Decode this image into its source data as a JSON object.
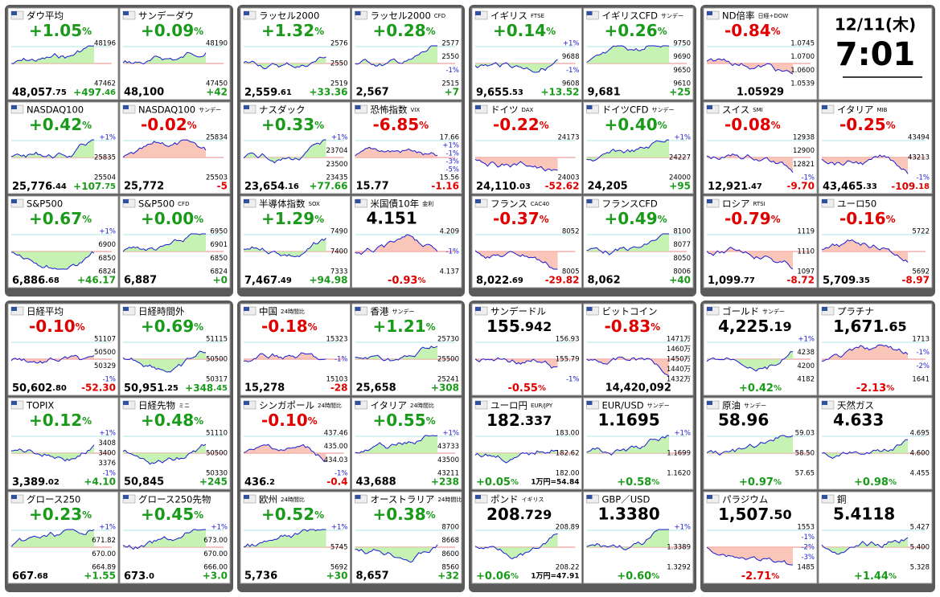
{
  "clock": {
    "date": "12/11(木)",
    "time": "7:01"
  },
  "groups": [
    {
      "tiles": [
        {
          "name": "ダウ平均",
          "headline": "+1.05%",
          "footer": [
            "48,057.75",
            "+497.46"
          ],
          "labels": [
            "48196",
            "47462"
          ]
        },
        {
          "name": "サンデーダウ",
          "headline": "+0.09%",
          "footer": [
            "48,100",
            "+42"
          ],
          "labels": [
            "48190",
            "47450"
          ]
        },
        {
          "name": "NASDAQ100",
          "headline": "+0.42%",
          "footer": [
            "25,776.44",
            "+107.75"
          ],
          "labels": [
            "+1%",
            "25835",
            "25504"
          ]
        },
        {
          "name": "NASDAQ100",
          "sub": "サンデー",
          "headline": "-0.02%",
          "footer": [
            "25,772",
            "-5"
          ],
          "labels": [
            "25834",
            "25503"
          ]
        },
        {
          "name": "S&P500",
          "headline": "+0.67%",
          "footer": [
            "6,886.68",
            "+46.17"
          ],
          "labels": [
            "+1%",
            "6900",
            "6850",
            "6824"
          ]
        },
        {
          "name": "S&P500",
          "sub": "CFD",
          "headline": "+0.00%",
          "footer": [
            "6,887",
            "+0"
          ],
          "labels": [
            "6950",
            "6901",
            "6850",
            "6824"
          ]
        }
      ]
    },
    {
      "tiles": [
        {
          "name": "ラッセル2000",
          "headline": "+1.32%",
          "footer": [
            "2,559.61",
            "+33.36"
          ],
          "labels": [
            "2576",
            "2550",
            "2519"
          ]
        },
        {
          "name": "ラッセル2000",
          "sub": "CFD",
          "headline": "+0.28%",
          "footer": [
            "2,567",
            "+7"
          ],
          "labels": [
            "2577",
            "2550",
            "-1%",
            "2515"
          ]
        },
        {
          "name": "ナスダック",
          "headline": "+0.33%",
          "footer": [
            "23,654.16",
            "+77.66"
          ],
          "labels": [
            "+1%",
            "23704",
            "23500",
            "23435"
          ]
        },
        {
          "name": "恐怖指数",
          "sub": "VIX",
          "headline": "-6.85%",
          "footer": [
            "15.77",
            "-1.16"
          ],
          "labels": [
            "17.66",
            "+1%",
            "-1%",
            "-3%",
            "-5%",
            "15.56"
          ]
        },
        {
          "name": "半導体指数",
          "sub": "SOX",
          "headline": "+1.29%",
          "footer": [
            "7,467.49",
            "+94.98"
          ],
          "labels": [
            "7490",
            "7400",
            "7333"
          ]
        },
        {
          "name": "米国債10年",
          "sub": "金利",
          "headline": "4.151",
          "footer": [
            "-0.93%"
          ],
          "labels": [
            "4.209",
            "-1%",
            "4.137"
          ]
        }
      ]
    },
    {
      "tiles": [
        {
          "name": "イギリス",
          "sub": "FTSE",
          "headline": "+0.14%",
          "footer": [
            "9,655.53",
            "+13.52"
          ],
          "labels": [
            "+1%",
            "9688",
            "-1%",
            "9608"
          ]
        },
        {
          "name": "イギリスCFD",
          "sub": "サンデー",
          "headline": "+0.26%",
          "footer": [
            "9,681",
            "+25"
          ],
          "labels": [
            "9750",
            "9690",
            "9650",
            "9610"
          ]
        },
        {
          "name": "ドイツ",
          "sub": "DAX",
          "headline": "-0.22%",
          "footer": [
            "24,110.03",
            "-52.62"
          ],
          "labels": [
            "24173",
            "24003"
          ]
        },
        {
          "name": "ドイツCFD",
          "sub": "サンデー",
          "headline": "+0.40%",
          "footer": [
            "24,205",
            "+95"
          ],
          "labels": [
            "+1%",
            "24227",
            "24000"
          ]
        },
        {
          "name": "フランス",
          "sub": "CAC40",
          "headline": "-0.37%",
          "footer": [
            "8,022.69",
            "-29.82"
          ],
          "labels": [
            "8052",
            "8005"
          ]
        },
        {
          "name": "フランスCFD",
          "headline": "+0.49%",
          "footer": [
            "8,062",
            "+40"
          ],
          "labels": [
            "8100",
            "8077",
            "8050",
            "8006"
          ]
        }
      ]
    },
    {
      "tiles": [
        {
          "name": "ND倍率",
          "sub": "日経÷DOW",
          "headline": "-0.84%",
          "footer": [
            "1.05929"
          ],
          "labels": [
            "1.0745",
            "1.0700",
            "1.0600",
            "1.0539"
          ]
        },
        {
          "name": "スイス",
          "sub": "SMI",
          "headline": "-0.08%",
          "footer": [
            "12,921.47",
            "-9.70"
          ],
          "labels": [
            "12938",
            "12900",
            "12821",
            "-1%"
          ]
        },
        {
          "name": "イタリア",
          "sub": "MIB",
          "headline": "-0.25%",
          "footer": [
            "43,465.33",
            "-109.18"
          ],
          "labels": [
            "43494",
            "43213",
            "-1%"
          ]
        },
        {
          "name": "ロシア",
          "sub": "RTSI",
          "headline": "-0.79%",
          "footer": [
            "1,099.77",
            "-8.72"
          ],
          "labels": [
            "1119",
            "1110",
            "1097"
          ]
        },
        {
          "name": "ユーロ50",
          "headline": "-0.16%",
          "footer": [
            "5,709.35",
            "-8.97"
          ],
          "labels": [
            "5722",
            "5692"
          ]
        }
      ]
    },
    {
      "tiles": [
        {
          "name": "日経平均",
          "headline": "-0.10%",
          "footer": [
            "50,602.80",
            "-52.30"
          ],
          "labels": [
            "51107",
            "50500",
            "50329",
            "-1%"
          ]
        },
        {
          "name": "日経時間外",
          "headline": "+0.69%",
          "footer": [
            "50,951.25",
            "+348.45"
          ],
          "labels": [
            "51115",
            "50500",
            "50317"
          ]
        },
        {
          "name": "TOPIX",
          "headline": "+0.12%",
          "footer": [
            "3,389.02",
            "+4.10"
          ],
          "labels": [
            "+1%",
            "3408",
            "3400",
            "3376",
            "-1%"
          ]
        },
        {
          "name": "日経先物",
          "sub": "ミニ",
          "headline": "+0.48%",
          "footer": [
            "50,845",
            "+245"
          ],
          "labels": [
            "51110",
            "50500",
            "50330"
          ]
        },
        {
          "name": "グロース250",
          "headline": "+0.23%",
          "footer": [
            "667.68",
            "+1.55"
          ],
          "labels": [
            "+1%",
            "671.82",
            "670.00",
            "664.89"
          ]
        },
        {
          "name": "グロース250先物",
          "headline": "+0.45%",
          "footer": [
            "673.0",
            "+3.0"
          ],
          "labels": [
            "+1%",
            "673.00",
            "670.00",
            "666.00"
          ]
        }
      ]
    },
    {
      "tiles": [
        {
          "name": "中国",
          "sub": "24時間比",
          "headline": "-0.18%",
          "footer": [
            "15,278",
            "-28"
          ],
          "labels": [
            "15323",
            "-1%",
            "15103"
          ]
        },
        {
          "name": "香港",
          "sub": "サンデー",
          "headline": "+1.21%",
          "footer": [
            "25,658",
            "+308"
          ],
          "labels": [
            "25730",
            "25500",
            "25241"
          ]
        },
        {
          "name": "シンガポール",
          "sub": "24時間比",
          "headline": "-0.10%",
          "footer": [
            "436.2",
            "-0.4"
          ],
          "labels": [
            "437.46",
            "435.00",
            "434.03",
            "-1%"
          ]
        },
        {
          "name": "イタリア",
          "sub": "24時間比",
          "headline": "+0.55%",
          "footer": [
            "43,688",
            "+238"
          ],
          "labels": [
            "+1%",
            "43733",
            "43500",
            "43211"
          ]
        },
        {
          "name": "欧州",
          "sub": "24時間比",
          "headline": "+0.52%",
          "footer": [
            "5,736",
            "+30"
          ],
          "labels": [
            "+1%",
            "5745",
            "5692"
          ]
        },
        {
          "name": "オーストラリア",
          "sub": "24時間比",
          "headline": "+0.38%",
          "footer": [
            "8,657",
            "+32"
          ],
          "labels": [
            "8700",
            "8668",
            "8600",
            "8560"
          ]
        }
      ]
    },
    {
      "tiles": [
        {
          "name": "サンデードル",
          "headline": "155.942",
          "footer": [
            "-0.55%"
          ],
          "labels": [
            "156.93",
            "155.79",
            "-1%"
          ]
        },
        {
          "name": "ビットコイン",
          "headline": "-0.83%",
          "footer": [
            "14,420,092"
          ],
          "labels": [
            "1471万",
            "1460万",
            "1450万",
            "1440万",
            "1432万"
          ]
        },
        {
          "name": "ユーロ円",
          "sub": "EUR/JPY",
          "headline": "182.337",
          "footer": [
            "+0.05%",
            "1万円=54.84"
          ],
          "labels": [
            "183.00",
            "182.62",
            "182.00"
          ]
        },
        {
          "name": "EUR/USD",
          "sub": "サンデー",
          "headline": "1.1695",
          "footer": [
            "+0.58%"
          ],
          "labels": [
            "+1%",
            "1.1699",
            "1.1620"
          ]
        },
        {
          "name": "ポンド",
          "sub": "イギリス",
          "headline": "208.729",
          "footer": [
            "+0.06%",
            "1万円=47.91"
          ],
          "labels": [
            "208.89",
            "208.22"
          ]
        },
        {
          "name": "GBP／USD",
          "headline": "1.3380",
          "footer": [
            "+0.60%"
          ],
          "labels": [
            "+1%",
            "1.3389",
            "1.3292"
          ]
        }
      ]
    },
    {
      "tiles": [
        {
          "name": "ゴールド",
          "sub": "サンデー",
          "headline": "4,225.19",
          "footer": [
            "+0.42%"
          ],
          "labels": [
            "+1%",
            "4238",
            "4200",
            "4182"
          ]
        },
        {
          "name": "プラチナ",
          "headline": "1,671.65",
          "footer": [
            "-2.13%"
          ],
          "labels": [
            "1713",
            "-1%",
            "-2%",
            "1641"
          ]
        },
        {
          "name": "原油",
          "sub": "サンデー",
          "headline": "58.96",
          "footer": [
            "+0.97%"
          ],
          "labels": [
            "59.03",
            "58.50",
            "57.65"
          ]
        },
        {
          "name": "天然ガス",
          "headline": "4.633",
          "footer": [
            "+0.98%"
          ],
          "labels": [
            "4.695",
            "4.600",
            "4.455"
          ]
        },
        {
          "name": "パラジウム",
          "headline": "1,507.50",
          "footer": [
            "-2.71%"
          ],
          "labels": [
            "1553",
            "-1%",
            "-2%",
            "-3%",
            "1485"
          ]
        },
        {
          "name": "銅",
          "headline": "5.4118",
          "footer": [
            "+1.44%"
          ],
          "labels": [
            "5.427",
            "5.400",
            "5.328"
          ]
        }
      ]
    }
  ]
}
